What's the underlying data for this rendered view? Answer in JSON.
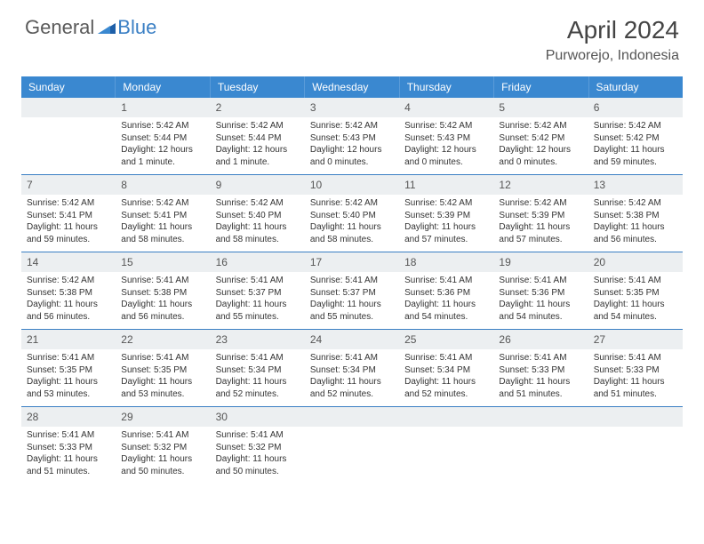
{
  "brand": {
    "part1": "General",
    "part2": "Blue"
  },
  "title": "April 2024",
  "location": "Purworejo, Indonesia",
  "colors": {
    "header_bg": "#3a88d0",
    "accent": "#3a7fc4",
    "daynum_bg": "#eceff1",
    "text": "#333333",
    "border": "#3a7fc4"
  },
  "typography": {
    "title_fontsize": 28,
    "location_fontsize": 16,
    "dow_fontsize": 12,
    "body_fontsize": 10
  },
  "day_headers": [
    "Sunday",
    "Monday",
    "Tuesday",
    "Wednesday",
    "Thursday",
    "Friday",
    "Saturday"
  ],
  "weeks": [
    [
      {
        "n": "",
        "sunrise": "",
        "sunset": "",
        "daylight": ""
      },
      {
        "n": "1",
        "sunrise": "Sunrise: 5:42 AM",
        "sunset": "Sunset: 5:44 PM",
        "daylight": "Daylight: 12 hours and 1 minute."
      },
      {
        "n": "2",
        "sunrise": "Sunrise: 5:42 AM",
        "sunset": "Sunset: 5:44 PM",
        "daylight": "Daylight: 12 hours and 1 minute."
      },
      {
        "n": "3",
        "sunrise": "Sunrise: 5:42 AM",
        "sunset": "Sunset: 5:43 PM",
        "daylight": "Daylight: 12 hours and 0 minutes."
      },
      {
        "n": "4",
        "sunrise": "Sunrise: 5:42 AM",
        "sunset": "Sunset: 5:43 PM",
        "daylight": "Daylight: 12 hours and 0 minutes."
      },
      {
        "n": "5",
        "sunrise": "Sunrise: 5:42 AM",
        "sunset": "Sunset: 5:42 PM",
        "daylight": "Daylight: 12 hours and 0 minutes."
      },
      {
        "n": "6",
        "sunrise": "Sunrise: 5:42 AM",
        "sunset": "Sunset: 5:42 PM",
        "daylight": "Daylight: 11 hours and 59 minutes."
      }
    ],
    [
      {
        "n": "7",
        "sunrise": "Sunrise: 5:42 AM",
        "sunset": "Sunset: 5:41 PM",
        "daylight": "Daylight: 11 hours and 59 minutes."
      },
      {
        "n": "8",
        "sunrise": "Sunrise: 5:42 AM",
        "sunset": "Sunset: 5:41 PM",
        "daylight": "Daylight: 11 hours and 58 minutes."
      },
      {
        "n": "9",
        "sunrise": "Sunrise: 5:42 AM",
        "sunset": "Sunset: 5:40 PM",
        "daylight": "Daylight: 11 hours and 58 minutes."
      },
      {
        "n": "10",
        "sunrise": "Sunrise: 5:42 AM",
        "sunset": "Sunset: 5:40 PM",
        "daylight": "Daylight: 11 hours and 58 minutes."
      },
      {
        "n": "11",
        "sunrise": "Sunrise: 5:42 AM",
        "sunset": "Sunset: 5:39 PM",
        "daylight": "Daylight: 11 hours and 57 minutes."
      },
      {
        "n": "12",
        "sunrise": "Sunrise: 5:42 AM",
        "sunset": "Sunset: 5:39 PM",
        "daylight": "Daylight: 11 hours and 57 minutes."
      },
      {
        "n": "13",
        "sunrise": "Sunrise: 5:42 AM",
        "sunset": "Sunset: 5:38 PM",
        "daylight": "Daylight: 11 hours and 56 minutes."
      }
    ],
    [
      {
        "n": "14",
        "sunrise": "Sunrise: 5:42 AM",
        "sunset": "Sunset: 5:38 PM",
        "daylight": "Daylight: 11 hours and 56 minutes."
      },
      {
        "n": "15",
        "sunrise": "Sunrise: 5:41 AM",
        "sunset": "Sunset: 5:38 PM",
        "daylight": "Daylight: 11 hours and 56 minutes."
      },
      {
        "n": "16",
        "sunrise": "Sunrise: 5:41 AM",
        "sunset": "Sunset: 5:37 PM",
        "daylight": "Daylight: 11 hours and 55 minutes."
      },
      {
        "n": "17",
        "sunrise": "Sunrise: 5:41 AM",
        "sunset": "Sunset: 5:37 PM",
        "daylight": "Daylight: 11 hours and 55 minutes."
      },
      {
        "n": "18",
        "sunrise": "Sunrise: 5:41 AM",
        "sunset": "Sunset: 5:36 PM",
        "daylight": "Daylight: 11 hours and 54 minutes."
      },
      {
        "n": "19",
        "sunrise": "Sunrise: 5:41 AM",
        "sunset": "Sunset: 5:36 PM",
        "daylight": "Daylight: 11 hours and 54 minutes."
      },
      {
        "n": "20",
        "sunrise": "Sunrise: 5:41 AM",
        "sunset": "Sunset: 5:35 PM",
        "daylight": "Daylight: 11 hours and 54 minutes."
      }
    ],
    [
      {
        "n": "21",
        "sunrise": "Sunrise: 5:41 AM",
        "sunset": "Sunset: 5:35 PM",
        "daylight": "Daylight: 11 hours and 53 minutes."
      },
      {
        "n": "22",
        "sunrise": "Sunrise: 5:41 AM",
        "sunset": "Sunset: 5:35 PM",
        "daylight": "Daylight: 11 hours and 53 minutes."
      },
      {
        "n": "23",
        "sunrise": "Sunrise: 5:41 AM",
        "sunset": "Sunset: 5:34 PM",
        "daylight": "Daylight: 11 hours and 52 minutes."
      },
      {
        "n": "24",
        "sunrise": "Sunrise: 5:41 AM",
        "sunset": "Sunset: 5:34 PM",
        "daylight": "Daylight: 11 hours and 52 minutes."
      },
      {
        "n": "25",
        "sunrise": "Sunrise: 5:41 AM",
        "sunset": "Sunset: 5:34 PM",
        "daylight": "Daylight: 11 hours and 52 minutes."
      },
      {
        "n": "26",
        "sunrise": "Sunrise: 5:41 AM",
        "sunset": "Sunset: 5:33 PM",
        "daylight": "Daylight: 11 hours and 51 minutes."
      },
      {
        "n": "27",
        "sunrise": "Sunrise: 5:41 AM",
        "sunset": "Sunset: 5:33 PM",
        "daylight": "Daylight: 11 hours and 51 minutes."
      }
    ],
    [
      {
        "n": "28",
        "sunrise": "Sunrise: 5:41 AM",
        "sunset": "Sunset: 5:33 PM",
        "daylight": "Daylight: 11 hours and 51 minutes."
      },
      {
        "n": "29",
        "sunrise": "Sunrise: 5:41 AM",
        "sunset": "Sunset: 5:32 PM",
        "daylight": "Daylight: 11 hours and 50 minutes."
      },
      {
        "n": "30",
        "sunrise": "Sunrise: 5:41 AM",
        "sunset": "Sunset: 5:32 PM",
        "daylight": "Daylight: 11 hours and 50 minutes."
      },
      {
        "n": "",
        "sunrise": "",
        "sunset": "",
        "daylight": ""
      },
      {
        "n": "",
        "sunrise": "",
        "sunset": "",
        "daylight": ""
      },
      {
        "n": "",
        "sunrise": "",
        "sunset": "",
        "daylight": ""
      },
      {
        "n": "",
        "sunrise": "",
        "sunset": "",
        "daylight": ""
      }
    ]
  ]
}
